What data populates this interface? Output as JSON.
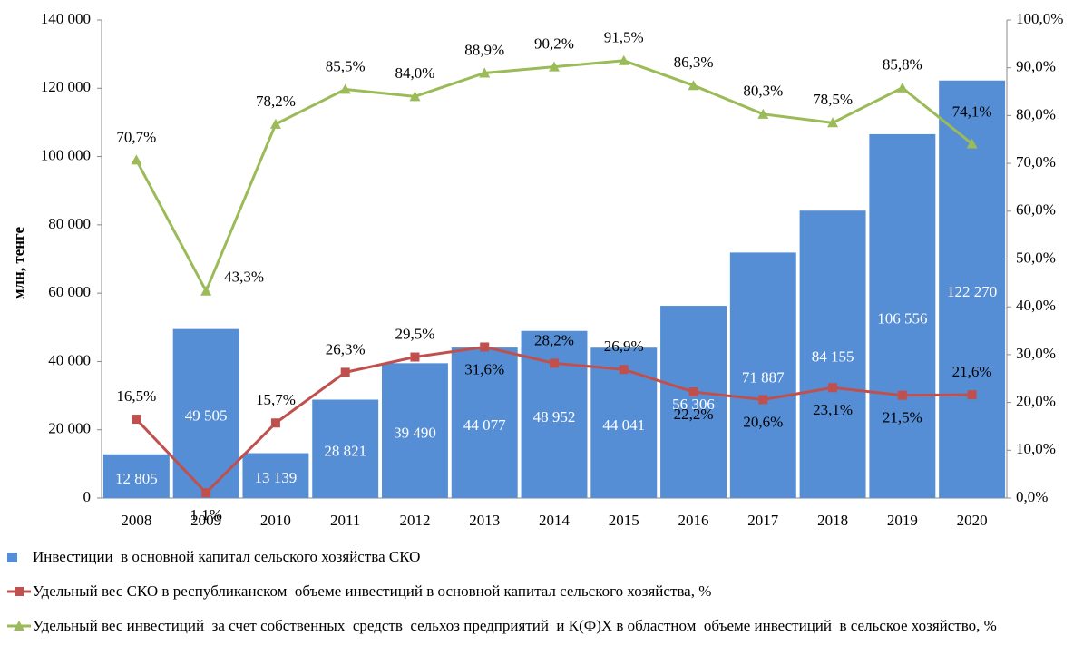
{
  "chart_data": {
    "type": "bar",
    "y_label": "млн, тенге",
    "categories": [
      "2008",
      "2009",
      "2010",
      "2011",
      "2012",
      "2013",
      "2014",
      "2015",
      "2016",
      "2017",
      "2018",
      "2019",
      "2020"
    ],
    "series": [
      {
        "name": "Инвестиции  в основной капитал сельского хозяйства СКО",
        "type": "bar",
        "color": "#558ed5",
        "values": [
          12805,
          49505,
          13139,
          28821,
          39490,
          44077,
          48952,
          44041,
          56306,
          71887,
          84155,
          106556,
          122270
        ],
        "value_labels": [
          "12 805",
          "49 505",
          "13 139",
          "28 821",
          "39 490",
          "44 077",
          "48 952",
          "44 041",
          "56 306",
          "71 887",
          "84 155",
          "106 556",
          "122 270"
        ]
      },
      {
        "name": "Удельный вес СКО в республиканском  объеме инвестиций в основной капитал сельского хозяйства, %",
        "type": "line",
        "axis": "y2",
        "color": "#c0504d",
        "marker": "square",
        "values": [
          16.5,
          1.1,
          15.7,
          26.3,
          29.5,
          31.6,
          28.2,
          26.9,
          22.2,
          20.6,
          23.1,
          21.5,
          21.6
        ],
        "value_labels": [
          "16,5%",
          "1,1%",
          "15,7%",
          "26,3%",
          "29,5%",
          "31,6%",
          "28,2%",
          "26,9%",
          "22,2%",
          "20,6%",
          "23,1%",
          "21,5%",
          "21,6%"
        ]
      },
      {
        "name": "Удельный вес инвестиций  за счет собственных  средств  сельхоз предприятий  и К(Ф)Х в областном  объеме инвестиций  в сельское хозяйство, %",
        "type": "line",
        "axis": "y2",
        "color": "#9bbb59",
        "marker": "triangle",
        "values": [
          70.7,
          43.3,
          78.2,
          85.5,
          84.0,
          88.9,
          90.2,
          91.5,
          86.3,
          80.3,
          78.5,
          85.8,
          74.1
        ],
        "value_labels": [
          "70,7%",
          "43,3%",
          "78,2%",
          "85,5%",
          "84,0%",
          "88,9%",
          "90,2%",
          "91,5%",
          "86,3%",
          "80,3%",
          "78,5%",
          "85,8%",
          "74,1%"
        ]
      }
    ],
    "ylim": [
      0,
      140000
    ],
    "yticks": [
      0,
      {
        "value": 20000,
        "label": "20 000"
      },
      {
        "value": 40000,
        "label": "40 000"
      },
      {
        "value": 60000,
        "label": "60 000"
      },
      {
        "value": 80000,
        "label": "80 000"
      },
      {
        "value": 100000,
        "label": "100 000"
      },
      {
        "value": 120000,
        "label": "120 000"
      },
      {
        "value": 140000,
        "label": "140 000"
      }
    ],
    "y2lim": [
      0,
      100
    ],
    "y2ticks": [
      {
        "value": 0,
        "label": "0,0%"
      },
      {
        "value": 10,
        "label": "10,0%"
      },
      {
        "value": 20,
        "label": "20,0%"
      },
      {
        "value": 30,
        "label": "30,0%"
      },
      {
        "value": 40,
        "label": "40,0%"
      },
      {
        "value": 50,
        "label": "50,0%"
      },
      {
        "value": 60,
        "label": "60,0%"
      },
      {
        "value": 70,
        "label": "70,0%"
      },
      {
        "value": 80,
        "label": "80,0%"
      },
      {
        "value": 90,
        "label": "90,0%"
      },
      {
        "value": 100,
        "label": "100,0%"
      }
    ],
    "grid": false,
    "legend": "bottom"
  }
}
